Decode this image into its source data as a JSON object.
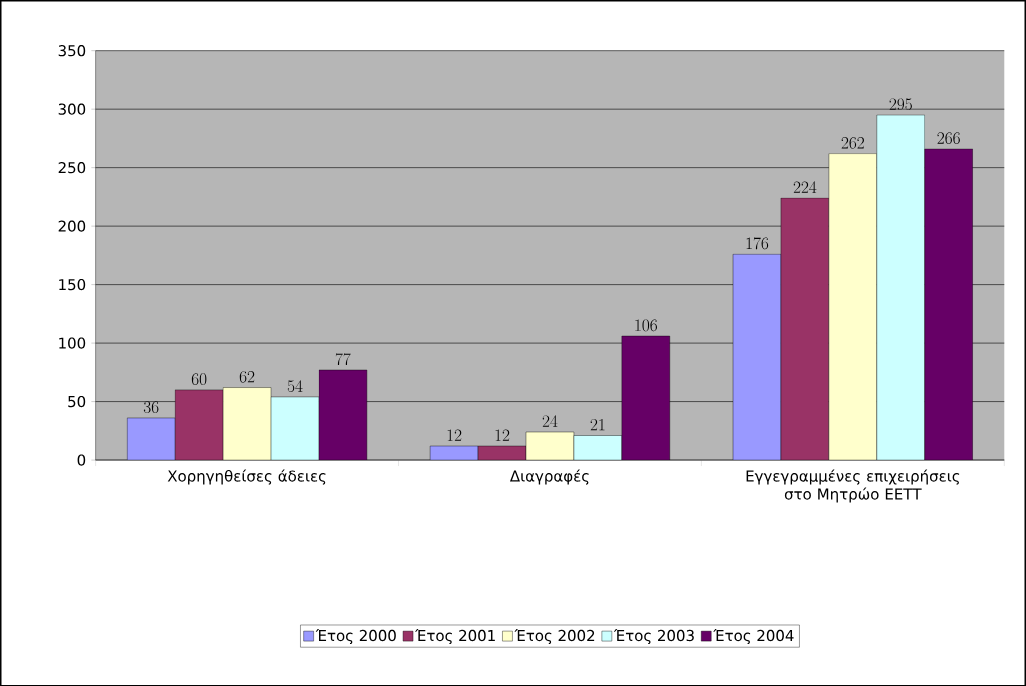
{
  "chart_data": {
    "type": "bar",
    "categories": [
      "Χορηγηθείσες άδειες",
      "Διαγραφές",
      "Εγγεγραμμένες επιχειρήσεις στο Μητρώο ΕΕΤΤ"
    ],
    "series": [
      {
        "name": "Έτος 2000",
        "color": "#9999ff",
        "values": [
          36,
          12,
          176
        ]
      },
      {
        "name": "Έτος 2001",
        "color": "#993366",
        "values": [
          60,
          12,
          224
        ]
      },
      {
        "name": "Έτος 2002",
        "color": "#ffffcc",
        "values": [
          62,
          24,
          262
        ]
      },
      {
        "name": "Έτος 2003",
        "color": "#ccffff",
        "values": [
          54,
          21,
          295
        ]
      },
      {
        "name": "Έτος 2004",
        "color": "#660066",
        "values": [
          77,
          106,
          266
        ]
      }
    ],
    "ylim": [
      0,
      350
    ],
    "yticks": [
      0,
      50,
      100,
      150,
      200,
      250,
      300,
      350
    ],
    "grid": "y",
    "legend": "bottom",
    "data_labels": true
  }
}
